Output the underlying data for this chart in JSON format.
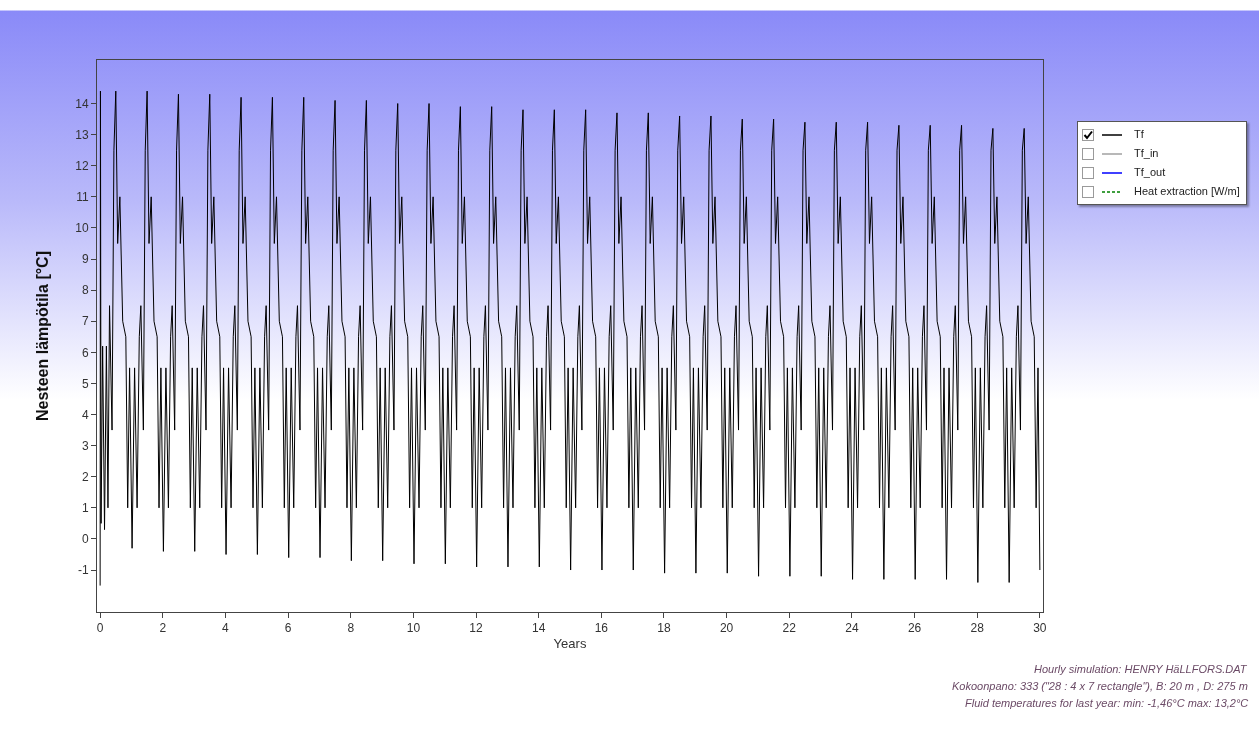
{
  "chart_data": {
    "type": "line",
    "xlabel": "Years",
    "ylabel": "Nesteen lämpötila [°C]",
    "xlim": [
      -0.1,
      30.1
    ],
    "xticks": [
      0,
      2,
      4,
      6,
      8,
      10,
      12,
      14,
      16,
      18,
      20,
      22,
      24,
      26,
      28,
      30
    ],
    "ylim": [
      -2.35,
      15.4
    ],
    "yticks": [
      -1,
      0,
      1,
      2,
      3,
      4,
      5,
      6,
      7,
      8,
      9,
      10,
      11,
      12,
      13,
      14
    ],
    "grid": false,
    "legend": "right",
    "marker": "none",
    "annotations": [
      "Hourly simulation: HENRY HäLLFORS.DAT",
      "Kokoonpano: 333 (\"28 : 4 x 7 rectangle\"), B: 20 m , D: 275 m",
      "Fluid temperatures for last year: min: -1,46°C max: 13,2°C"
    ],
    "series": [
      {
        "name": "Tf",
        "color": "#000000",
        "line_style": "solid",
        "x": [
          0,
          0.01,
          0.03,
          0.08,
          0.14,
          0.2,
          0.25,
          0.3,
          0.38,
          0.44,
          0.5,
          0.56,
          0.63,
          0.72,
          0.82,
          0.88,
          0.94,
          1.02,
          1.1,
          1.18,
          1.25,
          1.3,
          1.38,
          1.44,
          1.5,
          1.56,
          1.63,
          1.72,
          1.82,
          1.88,
          1.94,
          2.02,
          2.1,
          2.18,
          2.25,
          2.3,
          2.38,
          2.44,
          2.5,
          2.56,
          2.63,
          2.72,
          2.82,
          2.88,
          2.94,
          3.02,
          3.1,
          3.18,
          3.25,
          3.3,
          3.38,
          3.44,
          3.5,
          3.56,
          3.63,
          3.72,
          3.82,
          3.88,
          3.94,
          4.02,
          4.1,
          4.18,
          4.25,
          4.3,
          4.38,
          4.44,
          4.5,
          4.56,
          4.63,
          4.72,
          4.82,
          4.88,
          4.94,
          5.02,
          5.1,
          5.18,
          5.25,
          5.3,
          5.38,
          5.44,
          5.5,
          5.56,
          5.63,
          5.72,
          5.82,
          5.88,
          5.94,
          6.02,
          6.1,
          6.18,
          6.25,
          6.3,
          6.38,
          6.44,
          6.5,
          6.56,
          6.63,
          6.72,
          6.82,
          6.88,
          6.94,
          7.02,
          7.1,
          7.18,
          7.25,
          7.3,
          7.38,
          7.44,
          7.5,
          7.56,
          7.63,
          7.72,
          7.82,
          7.88,
          7.94,
          8.02,
          8.1,
          8.18,
          8.25,
          8.3,
          8.38,
          8.44,
          8.5,
          8.56,
          8.63,
          8.72,
          8.82,
          8.88,
          8.94,
          9.02,
          9.1,
          9.18,
          9.25,
          9.3,
          9.38,
          9.44,
          9.5,
          9.56,
          9.63,
          9.72,
          9.82,
          9.88,
          9.94,
          10.02,
          10.1,
          10.18,
          10.25,
          10.3,
          10.38,
          10.44,
          10.5,
          10.56,
          10.63,
          10.72,
          10.82,
          10.88,
          10.94,
          11.02,
          11.1,
          11.18,
          11.25,
          11.3,
          11.38,
          11.44,
          11.5,
          11.56,
          11.63,
          11.72,
          11.82,
          11.88,
          11.94,
          12.02,
          12.1,
          12.18,
          12.25,
          12.3,
          12.38,
          12.44,
          12.5,
          12.56,
          12.63,
          12.72,
          12.82,
          12.88,
          12.94,
          13.02,
          13.1,
          13.18,
          13.25,
          13.3,
          13.38,
          13.44,
          13.5,
          13.56,
          13.63,
          13.72,
          13.82,
          13.88,
          13.94,
          14.02,
          14.1,
          14.18,
          14.25,
          14.3,
          14.38,
          14.44,
          14.5,
          14.56,
          14.63,
          14.72,
          14.82,
          14.88,
          14.94,
          15.02,
          15.1,
          15.18,
          15.25,
          15.3,
          15.38,
          15.44,
          15.5,
          15.56,
          15.63,
          15.72,
          15.82,
          15.88,
          15.94,
          16.02,
          16.1,
          16.18,
          16.25,
          16.3,
          16.38,
          16.44,
          16.5,
          16.56,
          16.63,
          16.72,
          16.82,
          16.88,
          16.94,
          17.02,
          17.1,
          17.18,
          17.25,
          17.3,
          17.38,
          17.44,
          17.5,
          17.56,
          17.63,
          17.72,
          17.82,
          17.88,
          17.94,
          18.02,
          18.1,
          18.18,
          18.25,
          18.3,
          18.38,
          18.44,
          18.5,
          18.56,
          18.63,
          18.72,
          18.82,
          18.88,
          18.94,
          19.02,
          19.1,
          19.18,
          19.25,
          19.3,
          19.38,
          19.44,
          19.5,
          19.56,
          19.63,
          19.72,
          19.82,
          19.88,
          19.94,
          20.02,
          20.1,
          20.18,
          20.25,
          20.3,
          20.38,
          20.44,
          20.5,
          20.56,
          20.63,
          20.72,
          20.82,
          20.88,
          20.94,
          21.02,
          21.1,
          21.18,
          21.25,
          21.3,
          21.38,
          21.44,
          21.5,
          21.56,
          21.63,
          21.72,
          21.82,
          21.88,
          21.94,
          22.02,
          22.1,
          22.18,
          22.25,
          22.3,
          22.38,
          22.44,
          22.5,
          22.56,
          22.63,
          22.72,
          22.82,
          22.88,
          22.94,
          23.02,
          23.1,
          23.18,
          23.25,
          23.3,
          23.38,
          23.44,
          23.5,
          23.56,
          23.63,
          23.72,
          23.82,
          23.88,
          23.94,
          24.02,
          24.1,
          24.18,
          24.25,
          24.3,
          24.38,
          24.44,
          24.5,
          24.56,
          24.63,
          24.72,
          24.82,
          24.88,
          24.94,
          25.02,
          25.1,
          25.18,
          25.25,
          25.3,
          25.38,
          25.44,
          25.5,
          25.56,
          25.63,
          25.72,
          25.82,
          25.88,
          25.94,
          26.02,
          26.1,
          26.18,
          26.25,
          26.3,
          26.38,
          26.44,
          26.5,
          26.56,
          26.63,
          26.72,
          26.82,
          26.88,
          26.94,
          27.02,
          27.1,
          27.18,
          27.25,
          27.3,
          27.38,
          27.44,
          27.5,
          27.56,
          27.63,
          27.72,
          27.82,
          27.88,
          27.94,
          28.02,
          28.1,
          28.18,
          28.25,
          28.3,
          28.38,
          28.44,
          28.5,
          28.56,
          28.63,
          28.72,
          28.82,
          28.88,
          28.94,
          29.02,
          29.1,
          29.18,
          29.25,
          29.3,
          29.38,
          29.44,
          29.5,
          29.56,
          29.63,
          29.72,
          29.82,
          29.88,
          29.94,
          30
        ],
        "values": [
          -1.5,
          14.4,
          0.5,
          6.2,
          0.3,
          6.2,
          1,
          7.5,
          3.5,
          12.5,
          14.4,
          9.5,
          11,
          7,
          6.5,
          1,
          5.5,
          -0.3,
          5.5,
          1,
          6.5,
          7.5,
          3.5,
          12.5,
          14.4,
          9.5,
          11,
          7,
          6.5,
          1,
          5.5,
          -0.4,
          5.5,
          1,
          6.5,
          7.5,
          3.5,
          12.5,
          14.3,
          9.5,
          11,
          7,
          6.5,
          1,
          5.5,
          -0.4,
          5.5,
          1,
          6.5,
          7.5,
          3.5,
          12.5,
          14.3,
          9.5,
          11,
          7,
          6.5,
          1,
          5.5,
          -0.5,
          5.5,
          1,
          6.5,
          7.5,
          3.5,
          12.5,
          14.2,
          9.5,
          11,
          7,
          6.5,
          1,
          5.5,
          -0.5,
          5.5,
          1,
          6.5,
          7.5,
          3.5,
          12.5,
          14.2,
          9.5,
          11,
          7,
          6.5,
          1,
          5.5,
          -0.6,
          5.5,
          1,
          6.5,
          7.5,
          3.5,
          12.5,
          14.2,
          9.5,
          11,
          7,
          6.5,
          1,
          5.5,
          -0.6,
          5.5,
          1,
          6.5,
          7.5,
          3.5,
          12.5,
          14.1,
          9.5,
          11,
          7,
          6.5,
          1,
          5.5,
          -0.7,
          5.5,
          1,
          6.5,
          7.5,
          3.5,
          12.5,
          14.1,
          9.5,
          11,
          7,
          6.5,
          1,
          5.5,
          -0.7,
          5.5,
          1,
          6.5,
          7.5,
          3.5,
          12.5,
          14,
          9.5,
          11,
          7,
          6.5,
          1,
          5.5,
          -0.8,
          5.5,
          1,
          6.5,
          7.5,
          3.5,
          12.5,
          14,
          9.5,
          11,
          7,
          6.5,
          1,
          5.5,
          -0.8,
          5.5,
          1,
          6.5,
          7.5,
          3.5,
          12.5,
          13.9,
          9.5,
          11,
          7,
          6.5,
          1,
          5.5,
          -0.9,
          5.5,
          1,
          6.5,
          7.5,
          3.5,
          12.5,
          13.9,
          9.5,
          11,
          7,
          6.5,
          1,
          5.5,
          -0.9,
          5.5,
          1,
          6.5,
          7.5,
          3.5,
          12.5,
          13.8,
          9.5,
          11,
          7,
          6.5,
          1,
          5.5,
          -0.9,
          5.5,
          1,
          6.5,
          7.5,
          3.5,
          12.5,
          13.8,
          9.5,
          11,
          7,
          6.5,
          1,
          5.5,
          -1,
          5.5,
          1,
          6.5,
          7.5,
          3.5,
          12.5,
          13.8,
          9.5,
          11,
          7,
          6.5,
          1,
          5.5,
          -1,
          5.5,
          1,
          6.5,
          7.5,
          3.5,
          12.5,
          13.7,
          9.5,
          11,
          7,
          6.5,
          1,
          5.5,
          -1,
          5.5,
          1,
          6.5,
          7.5,
          3.5,
          12.5,
          13.7,
          9.5,
          11,
          7,
          6.5,
          1,
          5.5,
          -1.1,
          5.5,
          1,
          6.5,
          7.5,
          3.5,
          12.5,
          13.6,
          9.5,
          11,
          7,
          6.5,
          1,
          5.5,
          -1.1,
          5.5,
          1,
          6.5,
          7.5,
          3.5,
          12.5,
          13.6,
          9.5,
          11,
          7,
          6.5,
          1,
          5.5,
          -1.1,
          5.5,
          1,
          6.5,
          7.5,
          3.5,
          12.5,
          13.5,
          9.5,
          11,
          7,
          6.5,
          1,
          5.5,
          -1.2,
          5.5,
          1,
          6.5,
          7.5,
          3.5,
          12.5,
          13.5,
          9.5,
          11,
          7,
          6.5,
          1,
          5.5,
          -1.2,
          5.5,
          1,
          6.5,
          7.5,
          3.5,
          12.5,
          13.4,
          9.5,
          11,
          7,
          6.5,
          1,
          5.5,
          -1.2,
          5.5,
          1,
          6.5,
          7.5,
          3.5,
          12.5,
          13.4,
          9.5,
          11,
          7,
          6.5,
          1,
          5.5,
          -1.3,
          5.5,
          1,
          6.5,
          7.5,
          3.5,
          12.5,
          13.4,
          9.5,
          11,
          7,
          6.5,
          1,
          5.5,
          -1.3,
          5.5,
          1,
          6.5,
          7.5,
          3.5,
          12.5,
          13.3,
          9.5,
          11,
          7,
          6.5,
          1,
          5.5,
          -1.3,
          5.5,
          1,
          6.5,
          7.5,
          3.5,
          12.5,
          13.3,
          9.5,
          11,
          7,
          6.5,
          1,
          5.5,
          -1.3,
          5.5,
          1,
          6.5,
          7.5,
          3.5,
          12.5,
          13.3,
          9.5,
          11,
          7,
          6.5,
          1,
          5.5,
          -1.4,
          5.5,
          1,
          6.5,
          7.5,
          3.5,
          12.5,
          13.2,
          9.5,
          11,
          7,
          6.5,
          1,
          5.5,
          -1.4,
          5.5,
          1,
          6.5,
          7.5,
          3.5,
          12.5,
          13.2,
          9.5,
          11,
          7,
          6.5,
          1,
          5.5,
          -1
        ]
      },
      {
        "name": "Tf_in",
        "color": "#a0a0a0",
        "line_style": "solid"
      },
      {
        "name": "Tf_out",
        "color": "#0000ff",
        "line_style": "solid"
      },
      {
        "name": "Heat extraction [W/m]",
        "color": "#008000",
        "line_style": "dashed"
      }
    ]
  }
}
